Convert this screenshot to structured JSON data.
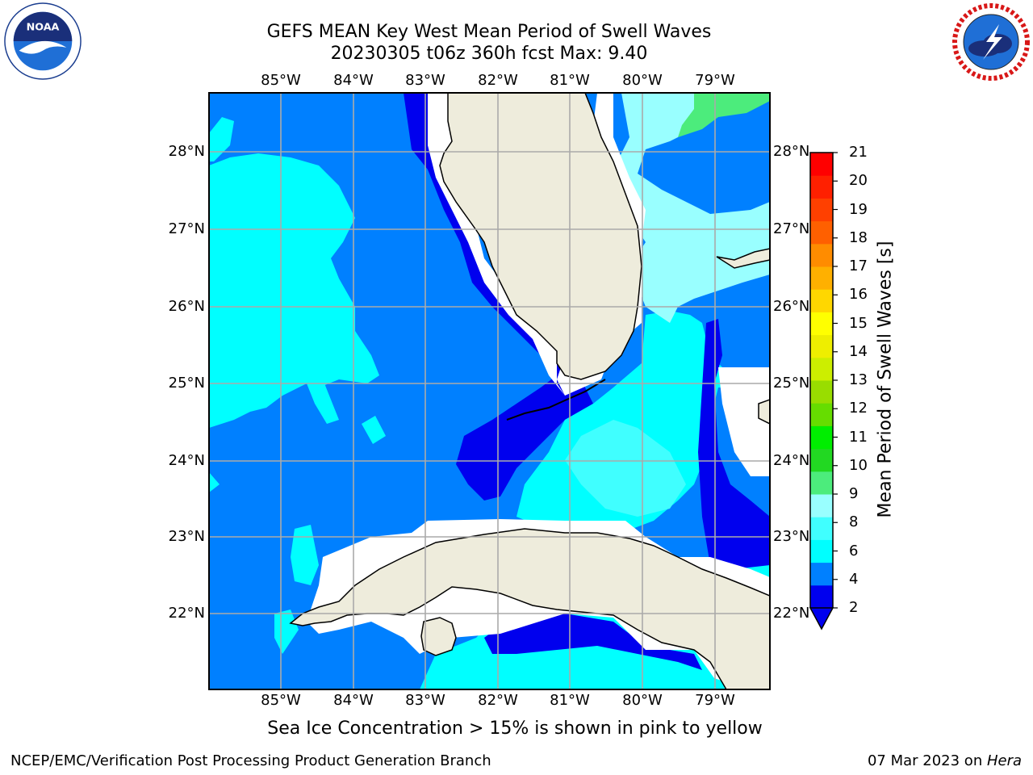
{
  "title": {
    "line1": "GEFS MEAN Key West Mean Period of Swell Waves",
    "line2": "20230305 t06z 360h fcst   Max: 9.40"
  },
  "logos": {
    "left": "noaa-logo",
    "right": "national-weather-service-logo"
  },
  "map": {
    "lon_labels": [
      "85°W",
      "84°W",
      "83°W",
      "82°W",
      "81°W",
      "80°W",
      "79°W"
    ],
    "lat_labels": [
      "28°N",
      "27°N",
      "26°N",
      "25°N",
      "24°N",
      "23°N",
      "22°N"
    ],
    "lon_range": [
      -86.0,
      -78.3
    ],
    "lat_range": [
      21.0,
      28.75
    ],
    "land_color": "#eeecdc",
    "gridlines": true
  },
  "colorbar": {
    "title": "Mean Period of Swell Waves [s]",
    "levels": [
      "21",
      "20",
      "19",
      "18",
      "17",
      "16",
      "15",
      "14",
      "13",
      "12",
      "11",
      "10",
      "9",
      "8",
      "6",
      "4",
      "2"
    ],
    "colors": [
      "#0000ee",
      "#0080ff",
      "#00ffff",
      "#40ffff",
      "#99ffff",
      "#4cec7c",
      "#22d822",
      "#00ee00",
      "#66dd00",
      "#99dd00",
      "#ccee00",
      "#eeee00",
      "#ffff00",
      "#ffd700",
      "#ffb000",
      "#ff8c00",
      "#ff6000",
      "#ff4000",
      "#ff2000",
      "#ff0000"
    ],
    "extend": "min"
  },
  "footnote": "Sea Ice Concentration > 15% is shown in pink to yellow",
  "credit": "NCEP/EMC/Verification Post Processing Product Generation Branch",
  "date": {
    "text": "07 Mar 2023 on ",
    "host": "Hera"
  }
}
